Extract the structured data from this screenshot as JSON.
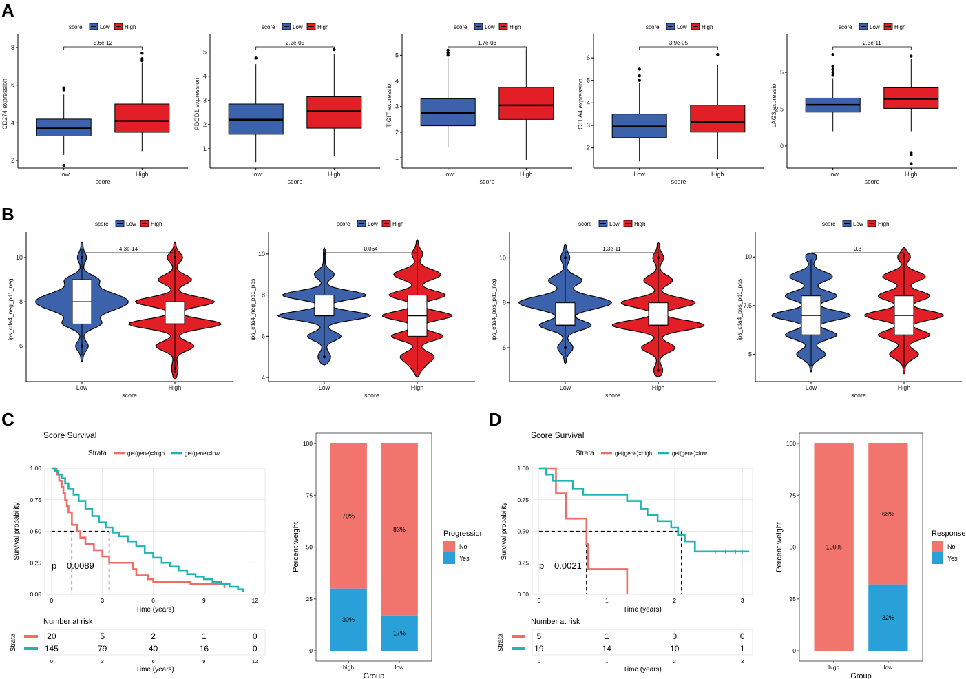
{
  "panel_labels": [
    "A",
    "B",
    "C",
    "D"
  ],
  "colors": {
    "low": "#3b62ab",
    "high": "#e21f26",
    "km_high": "#f06d66",
    "km_low": "#20b5b4",
    "no": "#f1756c",
    "yes": "#2aa0d8"
  },
  "chart_data": [
    {
      "type": "box",
      "panel": "A",
      "title": "",
      "xlabel": "score",
      "ylabel": "CD274 expression",
      "legend_title": "score",
      "legend_entries": [
        "Low",
        "High"
      ],
      "categories": [
        "Low",
        "High"
      ],
      "pvalue": "5.6e-12",
      "ylim": [
        1.6,
        8.4
      ],
      "yticks": [
        2,
        4,
        6,
        8
      ],
      "series": [
        {
          "name": "Low",
          "q1": 3.3,
          "median": 3.7,
          "q3": 4.2,
          "whisker_low": 2.3,
          "whisker_high": 5.5,
          "outliers": [
            1.75,
            5.75,
            5.85
          ]
        },
        {
          "name": "High",
          "q1": 3.5,
          "median": 4.1,
          "q3": 5.0,
          "whisker_low": 2.5,
          "whisker_high": 7.2,
          "outliers": [
            7.3,
            7.4,
            7.7
          ]
        }
      ]
    },
    {
      "type": "box",
      "panel": "A",
      "title": "",
      "xlabel": "score",
      "ylabel": "PDCD1 expression",
      "legend_title": "score",
      "legend_entries": [
        "Low",
        "High"
      ],
      "categories": [
        "Low",
        "High"
      ],
      "pvalue": "2.2e-05",
      "ylim": [
        0.2,
        5.5
      ],
      "yticks": [
        1,
        2,
        3,
        4,
        5
      ],
      "series": [
        {
          "name": "Low",
          "q1": 1.6,
          "median": 2.2,
          "q3": 2.85,
          "whisker_low": 0.45,
          "whisker_high": 4.5,
          "outliers": [
            4.75
          ]
        },
        {
          "name": "High",
          "q1": 1.85,
          "median": 2.55,
          "q3": 3.15,
          "whisker_low": 0.7,
          "whisker_high": 4.9,
          "outliers": [
            5.1
          ]
        }
      ]
    },
    {
      "type": "box",
      "panel": "A",
      "title": "",
      "xlabel": "score",
      "ylabel": "TIGIT expression",
      "legend_title": "score",
      "legend_entries": [
        "Low",
        "High"
      ],
      "categories": [
        "Low",
        "High"
      ],
      "pvalue": "1.7e-06",
      "ylim": [
        0.6,
        5.6
      ],
      "yticks": [
        1,
        2,
        3,
        4,
        5
      ],
      "series": [
        {
          "name": "Low",
          "q1": 2.25,
          "median": 2.75,
          "q3": 3.3,
          "whisker_low": 1.4,
          "whisker_high": 4.9,
          "outliers": [
            5.0,
            5.1,
            5.2
          ]
        },
        {
          "name": "High",
          "q1": 2.5,
          "median": 3.05,
          "q3": 3.75,
          "whisker_low": 0.9,
          "whisker_high": 5.2,
          "outliers": []
        }
      ]
    },
    {
      "type": "box",
      "panel": "A",
      "title": "",
      "xlabel": "score",
      "ylabel": "CTLA4 expression",
      "legend_title": "score",
      "legend_entries": [
        "Low",
        "High"
      ],
      "categories": [
        "Low",
        "High"
      ],
      "pvalue": "3.9e-05",
      "ylim": [
        1.1,
        6.8
      ],
      "yticks": [
        2,
        3,
        4,
        5,
        6
      ],
      "series": [
        {
          "name": "Low",
          "q1": 2.45,
          "median": 2.95,
          "q3": 3.5,
          "whisker_low": 1.4,
          "whisker_high": 4.9,
          "outliers": [
            5.0,
            5.2,
            5.5
          ]
        },
        {
          "name": "High",
          "q1": 2.7,
          "median": 3.15,
          "q3": 3.9,
          "whisker_low": 1.5,
          "whisker_high": 5.7,
          "outliers": [
            6.15
          ]
        }
      ]
    },
    {
      "type": "box",
      "panel": "A",
      "title": "",
      "xlabel": "score",
      "ylabel": "LAG3 expression",
      "legend_title": "score",
      "legend_entries": [
        "Low",
        "High"
      ],
      "categories": [
        "Low",
        "High"
      ],
      "pvalue": "2.3e-11",
      "ylim": [
        -1.5,
        7.2
      ],
      "yticks": [
        0.0,
        2.5,
        5.0
      ],
      "series": [
        {
          "name": "Low",
          "q1": 2.3,
          "median": 2.8,
          "q3": 3.25,
          "whisker_low": 1.0,
          "whisker_high": 4.6,
          "outliers": [
            4.8,
            5.0,
            5.2,
            5.4,
            6.2
          ]
        },
        {
          "name": "High",
          "q1": 2.55,
          "median": 3.2,
          "q3": 3.95,
          "whisker_low": 1.0,
          "whisker_high": 5.9,
          "outliers": [
            -0.45,
            -0.6,
            -1.2,
            6.1
          ]
        }
      ]
    },
    {
      "type": "violin",
      "panel": "B",
      "title": "",
      "xlabel": "score",
      "ylabel": "ips_ctla4_neg_pd1_neg",
      "legend_title": "score",
      "legend_entries": [
        "Low",
        "High"
      ],
      "categories": [
        "Low",
        "High"
      ],
      "pvalue": "4.3e-14",
      "ylim": [
        4.4,
        10.9
      ],
      "yticks": [
        6,
        8,
        10
      ],
      "series": [
        {
          "name": "Low",
          "min": 5.3,
          "max": 10.7,
          "q1": 7.0,
          "median": 8.0,
          "q3": 9.0,
          "peaks": [
            [
              8.0,
              1.0,
              0.6
            ],
            [
              7.0,
              0.35,
              0.3
            ],
            [
              9.0,
              0.3,
              0.3
            ],
            [
              6.0,
              0.12,
              0.3
            ],
            [
              10.0,
              0.08,
              0.3
            ]
          ],
          "outliers": [
            6.0,
            10.0
          ]
        },
        {
          "name": "High",
          "min": 4.5,
          "max": 10.7,
          "q1": 7.0,
          "median": 7.0,
          "q3": 8.0,
          "peaks": [
            [
              8.0,
              0.85,
              0.3
            ],
            [
              7.0,
              1.0,
              0.3
            ],
            [
              9.0,
              0.35,
              0.3
            ],
            [
              6.0,
              0.4,
              0.3
            ],
            [
              10.0,
              0.15,
              0.3
            ],
            [
              5.0,
              0.05,
              0.4
            ]
          ],
          "outliers": [
            5.0,
            10.0
          ]
        }
      ]
    },
    {
      "type": "violin",
      "panel": "B",
      "title": "",
      "xlabel": "score",
      "ylabel": "ips_ctla4_neg_pd1_pos",
      "legend_title": "score",
      "legend_entries": [
        "Low",
        "High"
      ],
      "categories": [
        "Low",
        "High"
      ],
      "pvalue": "0.064",
      "ylim": [
        3.8,
        10.8
      ],
      "yticks": [
        4,
        6,
        8,
        10
      ],
      "series": [
        {
          "name": "Low",
          "min": 4.6,
          "max": 10.3,
          "q1": 7.0,
          "median": 7.0,
          "q3": 8.0,
          "peaks": [
            [
              8.0,
              0.9,
              0.3
            ],
            [
              7.0,
              1.0,
              0.3
            ],
            [
              9.0,
              0.2,
              0.3
            ],
            [
              6.0,
              0.35,
              0.3
            ],
            [
              5.0,
              0.12,
              0.35
            ]
          ],
          "outliers": [
            5.0,
            10.0
          ]
        },
        {
          "name": "High",
          "min": 4.0,
          "max": 10.7,
          "q1": 6.0,
          "median": 7.0,
          "q3": 8.0,
          "peaks": [
            [
              8.0,
              0.6,
              0.3
            ],
            [
              7.0,
              0.75,
              0.3
            ],
            [
              9.0,
              0.5,
              0.35
            ],
            [
              6.0,
              0.55,
              0.3
            ],
            [
              5.0,
              0.35,
              0.35
            ],
            [
              10.0,
              0.1,
              0.3
            ],
            [
              4.5,
              0.1,
              0.3
            ]
          ],
          "outliers": []
        }
      ]
    },
    {
      "type": "violin",
      "panel": "B",
      "title": "",
      "xlabel": "score",
      "ylabel": "ips_ctla4_pos_pd1_neg",
      "legend_title": "score",
      "legend_entries": [
        "Low",
        "High"
      ],
      "categories": [
        "Low",
        "High"
      ],
      "pvalue": "1.3e-11",
      "ylim": [
        4.5,
        10.9
      ],
      "yticks": [
        6,
        8,
        10
      ],
      "series": [
        {
          "name": "Low",
          "min": 5.3,
          "max": 10.6,
          "q1": 7.0,
          "median": 7.0,
          "q3": 8.0,
          "peaks": [
            [
              8.0,
              1.0,
              0.4
            ],
            [
              7.0,
              0.55,
              0.3
            ],
            [
              9.0,
              0.35,
              0.3
            ],
            [
              6.0,
              0.15,
              0.3
            ],
            [
              10.0,
              0.08,
              0.3
            ]
          ],
          "outliers": [
            6.0,
            10.0
          ]
        },
        {
          "name": "High",
          "min": 4.7,
          "max": 10.7,
          "q1": 7.0,
          "median": 7.0,
          "q3": 8.0,
          "peaks": [
            [
              8.0,
              0.8,
              0.3
            ],
            [
              7.0,
              1.0,
              0.3
            ],
            [
              9.0,
              0.3,
              0.3
            ],
            [
              6.0,
              0.35,
              0.3
            ],
            [
              10.0,
              0.1,
              0.3
            ],
            [
              5.0,
              0.08,
              0.3
            ]
          ],
          "outliers": [
            5.0,
            10.0
          ]
        }
      ]
    },
    {
      "type": "violin",
      "panel": "B",
      "title": "",
      "xlabel": "score",
      "ylabel": "ips_ctla4_pos_pd1_pos",
      "legend_title": "score",
      "legend_entries": [
        "Low",
        "High"
      ],
      "categories": [
        "Low",
        "High"
      ],
      "pvalue": "0.3",
      "ylim": [
        3.6,
        11.0
      ],
      "yticks": [
        5.0,
        7.5,
        10.0
      ],
      "series": [
        {
          "name": "Low",
          "min": 4.1,
          "max": 10.2,
          "q1": 6.0,
          "median": 7.0,
          "q3": 8.0,
          "peaks": [
            [
              8.0,
              0.55,
              0.35
            ],
            [
              7.0,
              0.85,
              0.35
            ],
            [
              9.0,
              0.45,
              0.35
            ],
            [
              6.0,
              0.55,
              0.35
            ],
            [
              5.0,
              0.3,
              0.35
            ],
            [
              10.0,
              0.1,
              0.3
            ]
          ],
          "outliers": []
        },
        {
          "name": "High",
          "min": 4.0,
          "max": 10.5,
          "q1": 6.0,
          "median": 7.0,
          "q3": 8.0,
          "peaks": [
            [
              8.0,
              0.55,
              0.35
            ],
            [
              7.0,
              0.85,
              0.35
            ],
            [
              9.0,
              0.45,
              0.35
            ],
            [
              6.0,
              0.55,
              0.35
            ],
            [
              5.0,
              0.3,
              0.35
            ],
            [
              10.0,
              0.12,
              0.3
            ]
          ],
          "outliers": []
        }
      ]
    },
    {
      "type": "line",
      "subtype": "kaplan-meier",
      "panel": "C",
      "title": "Score Survival",
      "xlabel": "Time (years)",
      "ylabel": "Survival probability",
      "legend_title": "Strata",
      "legend_entries": [
        "get(gene)=high",
        "get(gene)=low"
      ],
      "xlim": [
        -0.4,
        12.6
      ],
      "ylim": [
        0,
        1
      ],
      "xticks": [
        0,
        3,
        6,
        9,
        12
      ],
      "yticks": [
        "0.00",
        "0.25",
        "0.50",
        "0.75",
        "1.00"
      ],
      "pvalue_label": "p = 0.0089",
      "median_survival": [
        1.2,
        3.4
      ],
      "series": [
        {
          "name": "get(gene)=high",
          "x": [
            0,
            0.3,
            0.45,
            0.6,
            0.7,
            0.8,
            0.9,
            1.0,
            1.2,
            1.5,
            1.7,
            2.0,
            2.5,
            2.8,
            3.0,
            3.4,
            4.0,
            4.8,
            5.0,
            5.7,
            6.0,
            7.0,
            8.2,
            10.2
          ],
          "y": [
            1.0,
            0.95,
            0.9,
            0.85,
            0.8,
            0.75,
            0.7,
            0.65,
            0.55,
            0.5,
            0.45,
            0.4,
            0.35,
            0.35,
            0.3,
            0.25,
            0.25,
            0.2,
            0.15,
            0.12,
            0.1,
            0.1,
            0.08,
            0.05
          ]
        },
        {
          "name": "get(gene)=low",
          "x": [
            0,
            0.2,
            0.4,
            0.6,
            0.8,
            1.0,
            1.3,
            1.6,
            2.0,
            2.4,
            2.8,
            3.2,
            3.6,
            4.0,
            4.5,
            5.0,
            5.5,
            6.0,
            6.5,
            7.0,
            7.5,
            8.0,
            8.5,
            9.0,
            9.5,
            10.0,
            10.5,
            11.0,
            11.3
          ],
          "y": [
            1.0,
            0.98,
            0.95,
            0.92,
            0.88,
            0.84,
            0.79,
            0.74,
            0.68,
            0.62,
            0.57,
            0.53,
            0.49,
            0.46,
            0.42,
            0.38,
            0.33,
            0.29,
            0.25,
            0.22,
            0.19,
            0.16,
            0.14,
            0.12,
            0.1,
            0.08,
            0.06,
            0.04,
            0.02
          ]
        }
      ],
      "risk_table": {
        "title": "Number at risk",
        "ylabel": "Strata",
        "xlabel": "Time (years)",
        "times": [
          0,
          3,
          6,
          9,
          12
        ],
        "rows": [
          [
            "20",
            "5",
            "2",
            "1",
            "0"
          ],
          [
            "145",
            "79",
            "40",
            "16",
            "0"
          ]
        ]
      }
    },
    {
      "type": "bar",
      "subtype": "stacked-percent",
      "panel": "C",
      "title": "",
      "xlabel": "Group",
      "ylabel": "Percent weight",
      "legend_title": "Progression",
      "legend_entries": [
        "No",
        "Yes"
      ],
      "categories": [
        "high",
        "low"
      ],
      "ylim": [
        0,
        100
      ],
      "yticks": [
        0,
        25,
        50,
        75,
        100
      ],
      "series": [
        {
          "name": "No",
          "values": [
            70,
            83
          ],
          "labels": [
            "70%",
            "83%"
          ]
        },
        {
          "name": "Yes",
          "values": [
            30,
            17
          ],
          "labels": [
            "30%",
            "17%"
          ]
        }
      ]
    },
    {
      "type": "line",
      "subtype": "kaplan-meier",
      "panel": "D",
      "title": "Score Survival",
      "xlabel": "Time (years)",
      "ylabel": "Survival probability",
      "legend_title": "Strata",
      "legend_entries": [
        "get(gene)=high",
        "get(gene)=low"
      ],
      "xlim": [
        -0.1,
        3.15
      ],
      "ylim": [
        0,
        1
      ],
      "xticks": [
        0,
        1,
        2,
        3
      ],
      "yticks": [
        "0.00",
        "0.25",
        "0.50",
        "0.75",
        "1.00"
      ],
      "pvalue_label": "p = 0.0021",
      "median_survival": [
        0.7,
        2.1
      ],
      "series": [
        {
          "name": "get(gene)=high",
          "x": [
            0,
            0.25,
            0.4,
            0.7,
            0.72,
            1.3
          ],
          "y": [
            1.0,
            0.8,
            0.6,
            0.4,
            0.2,
            0.0
          ]
        },
        {
          "name": "get(gene)=low",
          "x": [
            0,
            0.1,
            0.2,
            0.5,
            0.65,
            0.95,
            1.3,
            1.5,
            1.6,
            1.75,
            1.95,
            2.05,
            2.15,
            2.3,
            3.1
          ],
          "y": [
            1.0,
            0.95,
            0.9,
            0.84,
            0.79,
            0.79,
            0.74,
            0.68,
            0.63,
            0.58,
            0.53,
            0.47,
            0.42,
            0.34,
            0.34
          ]
        }
      ],
      "risk_table": {
        "title": "Number at risk",
        "ylabel": "Strata",
        "xlabel": "Time (years)",
        "times": [
          0,
          1,
          2,
          3
        ],
        "rows": [
          [
            "5",
            "1",
            "0",
            "0"
          ],
          [
            "19",
            "14",
            "10",
            "1"
          ]
        ]
      }
    },
    {
      "type": "bar",
      "subtype": "stacked-percent",
      "panel": "D",
      "title": "",
      "xlabel": "Group",
      "ylabel": "Percent weight",
      "legend_title": "Response",
      "legend_entries": [
        "No",
        "Yes"
      ],
      "categories": [
        "high",
        "low"
      ],
      "ylim": [
        0,
        100
      ],
      "yticks": [
        0,
        25,
        50,
        75,
        100
      ],
      "series": [
        {
          "name": "No",
          "values": [
            100,
            68
          ],
          "labels": [
            "100%",
            "68%"
          ]
        },
        {
          "name": "Yes",
          "values": [
            0,
            32
          ],
          "labels": [
            "",
            "32%"
          ]
        }
      ]
    }
  ]
}
